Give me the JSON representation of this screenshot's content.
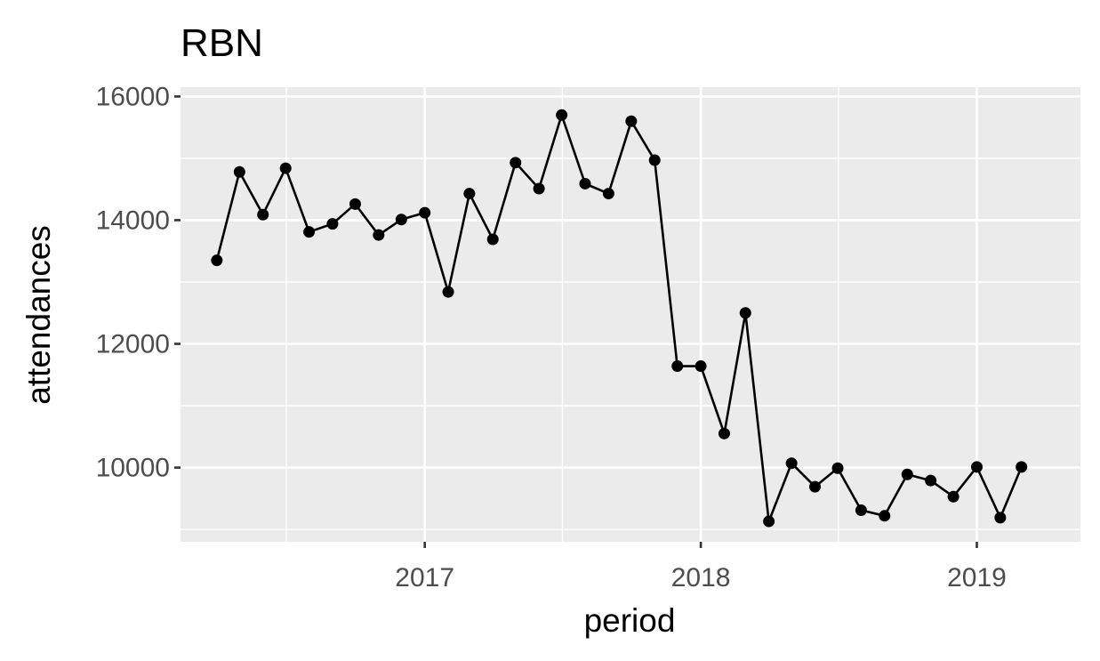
{
  "chart_data": {
    "type": "line",
    "title": "RBN",
    "xlabel": "period",
    "ylabel": "attendances",
    "ylim": [
      8800,
      16150
    ],
    "xlim": [
      "2016-02-13",
      "2019-05-18"
    ],
    "grid": true,
    "panel_background": "#ebebeb",
    "line_color": "#000000",
    "point_color": "#000000",
    "x_ticks": [
      {
        "value": "2017-01-01",
        "label": "2017"
      },
      {
        "value": "2018-01-01",
        "label": "2018"
      },
      {
        "value": "2019-01-01",
        "label": "2019"
      }
    ],
    "y_ticks": [
      {
        "value": 10000,
        "label": "10000"
      },
      {
        "value": 12000,
        "label": "12000"
      },
      {
        "value": 14000,
        "label": "14000"
      },
      {
        "value": 16000,
        "label": "16000"
      }
    ],
    "series": [
      {
        "x": [
          "2016-04-01",
          "2016-05-01",
          "2016-06-01",
          "2016-07-01",
          "2016-08-01",
          "2016-09-01",
          "2016-10-01",
          "2016-11-01",
          "2016-12-01",
          "2017-01-01",
          "2017-02-01",
          "2017-03-01",
          "2017-04-01",
          "2017-05-01",
          "2017-06-01",
          "2017-07-01",
          "2017-08-01",
          "2017-09-01",
          "2017-10-01",
          "2017-11-01",
          "2017-12-01",
          "2018-01-01",
          "2018-02-01",
          "2018-03-01",
          "2018-04-01",
          "2018-05-01",
          "2018-06-01",
          "2018-07-01",
          "2018-08-01",
          "2018-09-01",
          "2018-10-01",
          "2018-11-01",
          "2018-12-01",
          "2019-01-01",
          "2019-02-01",
          "2019-03-01"
        ],
        "values": [
          13350,
          14780,
          14090,
          14840,
          13810,
          13940,
          14260,
          13760,
          14010,
          14120,
          12840,
          14430,
          13690,
          14930,
          14510,
          15700,
          14590,
          14430,
          15600,
          14970,
          11640,
          11640,
          10550,
          12500,
          9130,
          10070,
          9690,
          9990,
          9310,
          9220,
          9890,
          9790,
          9530,
          10010,
          9190,
          10010
        ]
      }
    ]
  }
}
